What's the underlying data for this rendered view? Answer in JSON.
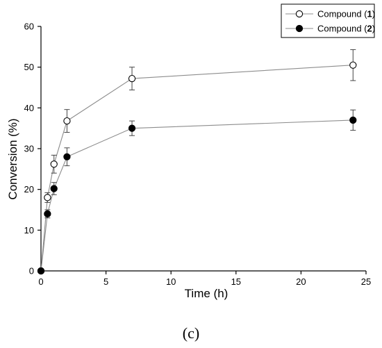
{
  "panel_label": "(c)",
  "chart_data": {
    "type": "scatter",
    "title": "",
    "xlabel": "Time (h)",
    "ylabel": "Conversion (%)",
    "xlim": [
      0,
      25
    ],
    "ylim": [
      0,
      60
    ],
    "xticks": [
      0,
      5,
      10,
      15,
      20,
      25
    ],
    "yticks": [
      0,
      10,
      20,
      30,
      40,
      50,
      60
    ],
    "grid": false,
    "legend_position": "top-right",
    "series": [
      {
        "name": "Compound (1)",
        "name_prefix": "Compound ",
        "name_bold": "1",
        "marker": "open-circle",
        "color": "#000000",
        "line_color": "#8c8c8c",
        "x": [
          0,
          0.5,
          1,
          2,
          7,
          24
        ],
        "y": [
          0,
          18,
          26.2,
          36.8,
          47.2,
          50.5
        ],
        "err": [
          0,
          1.2,
          2.2,
          2.8,
          2.8,
          3.8
        ]
      },
      {
        "name": "Compound (2)",
        "name_prefix": "Compound ",
        "name_bold": "2",
        "marker": "filled-circle",
        "color": "#000000",
        "line_color": "#8c8c8c",
        "x": [
          0,
          0.5,
          1,
          2,
          7,
          24
        ],
        "y": [
          0,
          14,
          20.2,
          28,
          35,
          37
        ],
        "err": [
          0,
          1.0,
          1.5,
          2.2,
          1.8,
          2.5
        ]
      }
    ]
  }
}
